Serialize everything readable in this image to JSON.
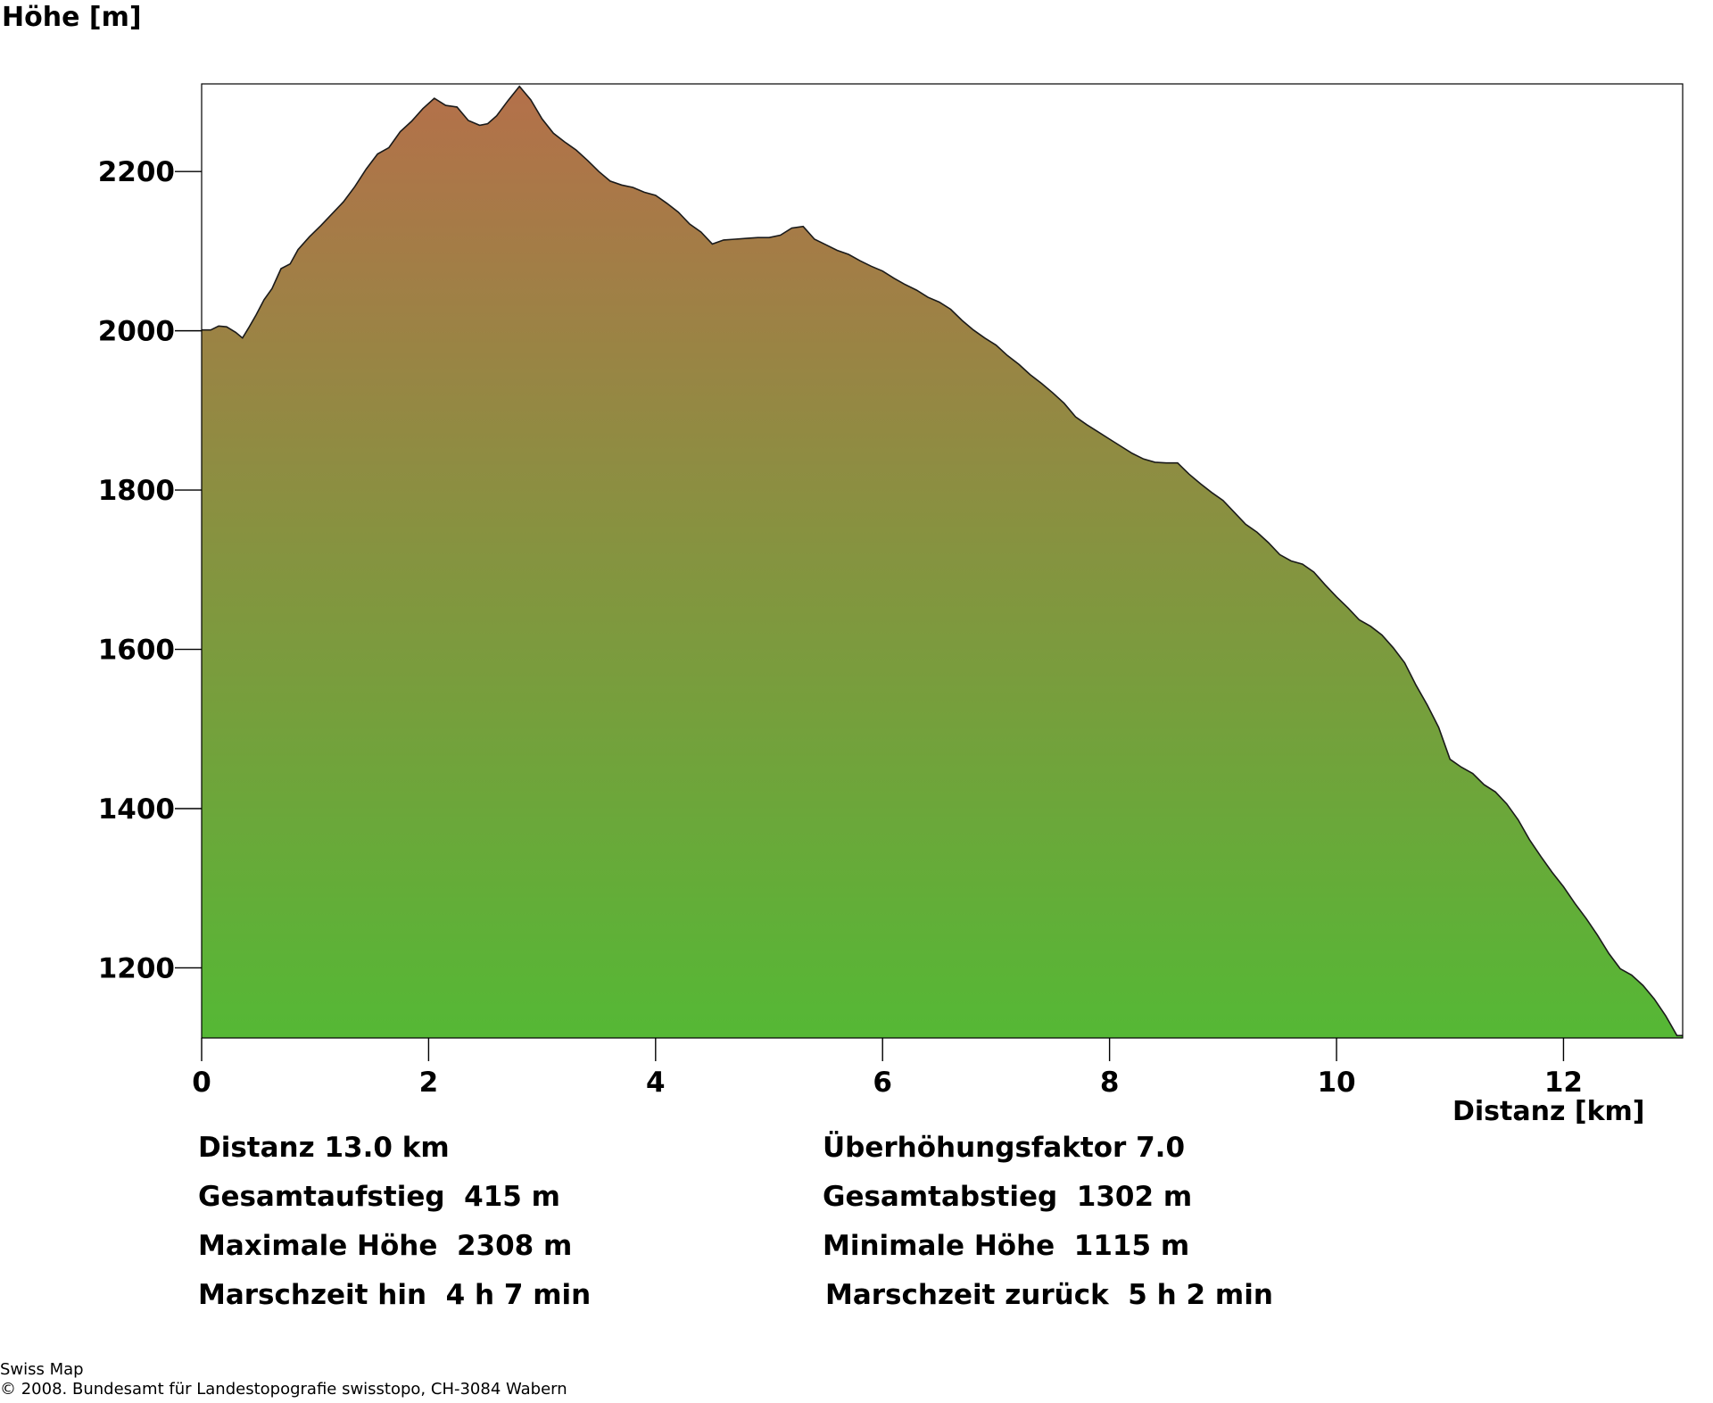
{
  "chart_data": {
    "type": "area",
    "ylabel": "Höhe [m]",
    "xlabel": "Distanz [km]",
    "xlim": [
      0,
      13.05
    ],
    "ylim": [
      1112,
      2310
    ],
    "x_ticks": [
      0,
      2,
      4,
      6,
      8,
      10,
      12
    ],
    "y_ticks": [
      1200,
      1400,
      1600,
      1800,
      2000,
      2200
    ],
    "gradient_colors": {
      "top": "#b4704a",
      "bottom": "#55b835"
    },
    "grid": false,
    "points": [
      [
        0.0,
        2001
      ],
      [
        0.08,
        2001
      ],
      [
        0.15,
        2006
      ],
      [
        0.22,
        2005
      ],
      [
        0.3,
        1998
      ],
      [
        0.36,
        1991
      ],
      [
        0.42,
        2005
      ],
      [
        0.48,
        2020
      ],
      [
        0.55,
        2039
      ],
      [
        0.62,
        2053
      ],
      [
        0.7,
        2078
      ],
      [
        0.78,
        2084
      ],
      [
        0.85,
        2102
      ],
      [
        0.95,
        2118
      ],
      [
        1.05,
        2132
      ],
      [
        1.15,
        2147
      ],
      [
        1.25,
        2162
      ],
      [
        1.35,
        2181
      ],
      [
        1.45,
        2203
      ],
      [
        1.55,
        2222
      ],
      [
        1.65,
        2230
      ],
      [
        1.75,
        2250
      ],
      [
        1.85,
        2263
      ],
      [
        1.95,
        2279
      ],
      [
        2.05,
        2292
      ],
      [
        2.15,
        2283
      ],
      [
        2.25,
        2281
      ],
      [
        2.35,
        2264
      ],
      [
        2.45,
        2258
      ],
      [
        2.52,
        2260
      ],
      [
        2.6,
        2270
      ],
      [
        2.7,
        2289
      ],
      [
        2.8,
        2307
      ],
      [
        2.9,
        2290
      ],
      [
        3.0,
        2266
      ],
      [
        3.1,
        2248
      ],
      [
        3.2,
        2237
      ],
      [
        3.3,
        2227
      ],
      [
        3.4,
        2214
      ],
      [
        3.5,
        2200
      ],
      [
        3.6,
        2188
      ],
      [
        3.7,
        2183
      ],
      [
        3.8,
        2180
      ],
      [
        3.9,
        2174
      ],
      [
        4.0,
        2170
      ],
      [
        4.1,
        2160
      ],
      [
        4.2,
        2149
      ],
      [
        4.3,
        2134
      ],
      [
        4.4,
        2124
      ],
      [
        4.5,
        2109
      ],
      [
        4.6,
        2114
      ],
      [
        4.7,
        2115
      ],
      [
        4.8,
        2116
      ],
      [
        4.9,
        2117
      ],
      [
        5.0,
        2117
      ],
      [
        5.1,
        2120
      ],
      [
        5.2,
        2129
      ],
      [
        5.3,
        2131
      ],
      [
        5.4,
        2115
      ],
      [
        5.5,
        2108
      ],
      [
        5.6,
        2101
      ],
      [
        5.7,
        2096
      ],
      [
        5.8,
        2088
      ],
      [
        5.9,
        2081
      ],
      [
        6.0,
        2075
      ],
      [
        6.1,
        2066
      ],
      [
        6.2,
        2058
      ],
      [
        6.3,
        2051
      ],
      [
        6.4,
        2042
      ],
      [
        6.5,
        2036
      ],
      [
        6.6,
        2027
      ],
      [
        6.7,
        2013
      ],
      [
        6.8,
        2001
      ],
      [
        6.9,
        1991
      ],
      [
        7.0,
        1982
      ],
      [
        7.1,
        1969
      ],
      [
        7.2,
        1958
      ],
      [
        7.3,
        1945
      ],
      [
        7.4,
        1934
      ],
      [
        7.5,
        1922
      ],
      [
        7.6,
        1909
      ],
      [
        7.7,
        1892
      ],
      [
        7.8,
        1882
      ],
      [
        7.9,
        1873
      ],
      [
        8.0,
        1864
      ],
      [
        8.1,
        1855
      ],
      [
        8.2,
        1846
      ],
      [
        8.3,
        1839
      ],
      [
        8.4,
        1835
      ],
      [
        8.5,
        1834
      ],
      [
        8.6,
        1834
      ],
      [
        8.7,
        1820
      ],
      [
        8.8,
        1808
      ],
      [
        8.9,
        1797
      ],
      [
        9.0,
        1787
      ],
      [
        9.1,
        1772
      ],
      [
        9.2,
        1757
      ],
      [
        9.3,
        1747
      ],
      [
        9.4,
        1734
      ],
      [
        9.5,
        1719
      ],
      [
        9.6,
        1711
      ],
      [
        9.7,
        1707
      ],
      [
        9.8,
        1697
      ],
      [
        9.9,
        1681
      ],
      [
        10.0,
        1666
      ],
      [
        10.1,
        1652
      ],
      [
        10.2,
        1637
      ],
      [
        10.3,
        1629
      ],
      [
        10.4,
        1618
      ],
      [
        10.5,
        1602
      ],
      [
        10.6,
        1583
      ],
      [
        10.7,
        1555
      ],
      [
        10.8,
        1530
      ],
      [
        10.9,
        1502
      ],
      [
        11.0,
        1462
      ],
      [
        11.1,
        1452
      ],
      [
        11.2,
        1444
      ],
      [
        11.3,
        1430
      ],
      [
        11.4,
        1421
      ],
      [
        11.5,
        1406
      ],
      [
        11.6,
        1386
      ],
      [
        11.7,
        1361
      ],
      [
        11.8,
        1340
      ],
      [
        11.9,
        1320
      ],
      [
        12.0,
        1302
      ],
      [
        12.1,
        1281
      ],
      [
        12.2,
        1262
      ],
      [
        12.3,
        1241
      ],
      [
        12.4,
        1218
      ],
      [
        12.5,
        1199
      ],
      [
        12.6,
        1191
      ],
      [
        12.7,
        1178
      ],
      [
        12.8,
        1161
      ],
      [
        12.9,
        1140
      ],
      [
        13.0,
        1115
      ],
      [
        13.05,
        1115
      ]
    ]
  },
  "stats": {
    "left": [
      "Distanz 13.0 km",
      "Gesamtaufstieg  415 m",
      "Maximale Höhe  2308 m",
      "Marschzeit hin  4 h 7 min"
    ],
    "right": [
      "Überhöhungsfaktor 7.0",
      "Gesamtabstieg  1302 m",
      "Minimale Höhe  1115 m",
      "Marschzeit zurück  5 h 2 min"
    ]
  },
  "footer": {
    "line1": "Swiss Map",
    "line2": "© 2008. Bundesamt für Landestopografie swisstopo, CH-3084 Wabern"
  }
}
